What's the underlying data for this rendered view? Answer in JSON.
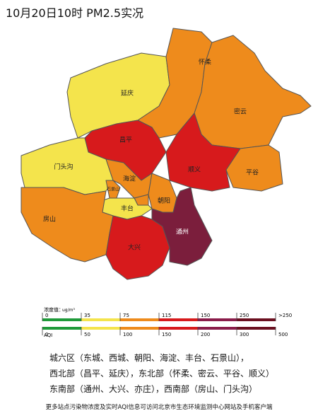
{
  "title": "10月20日10时 PM2.5实况",
  "districts": [
    {
      "name": "延庆",
      "color": "#f4e44c"
    },
    {
      "name": "怀柔",
      "color": "#ee8b1c"
    },
    {
      "name": "密云",
      "color": "#ee8b1c"
    },
    {
      "name": "平谷",
      "color": "#ee8b1c"
    },
    {
      "name": "顺义",
      "color": "#d71a1c"
    },
    {
      "name": "昌平",
      "color": "#d71a1c"
    },
    {
      "name": "门头沟",
      "color": "#f4e44c"
    },
    {
      "name": "海淀",
      "color": "#ee8b1c"
    },
    {
      "name": "朝阳",
      "color": "#ee8b1c"
    },
    {
      "name": "石景山",
      "color": "#ee8b1c"
    },
    {
      "name": "丰台",
      "color": "#f4e44c"
    },
    {
      "name": "房山",
      "color": "#ee8b1c"
    },
    {
      "name": "大兴",
      "color": "#d71a1c"
    },
    {
      "name": "通州",
      "color": "#7b1e3c"
    }
  ],
  "legend": {
    "concentration_label": "浓度值：",
    "unit": "ug/m³",
    "aqi_label": "AQI",
    "colors": [
      "#1f9a3a",
      "#f4e44c",
      "#ee8b1c",
      "#d71a1c",
      "#8a1c4a",
      "#6b1020"
    ],
    "concentration_ticks": [
      "0",
      "35",
      "75",
      "115",
      "150",
      "250",
      ">250"
    ],
    "aqi_ticks": [
      "0",
      "50",
      "100",
      "150",
      "200",
      "300",
      "500"
    ]
  },
  "notes": [
    "城六区（东城、西城、朝阳、海淀、丰台、石景山），",
    "西北部（昌平、延庆），东北部（怀柔、密云、平谷、顺义）",
    "东南部（通州、大兴、亦庄），西南部（房山、门头沟）"
  ],
  "footer": "更多站点污染物浓度及实时AQI信息可访问北京市生态环境监测中心网站及手机客户端"
}
